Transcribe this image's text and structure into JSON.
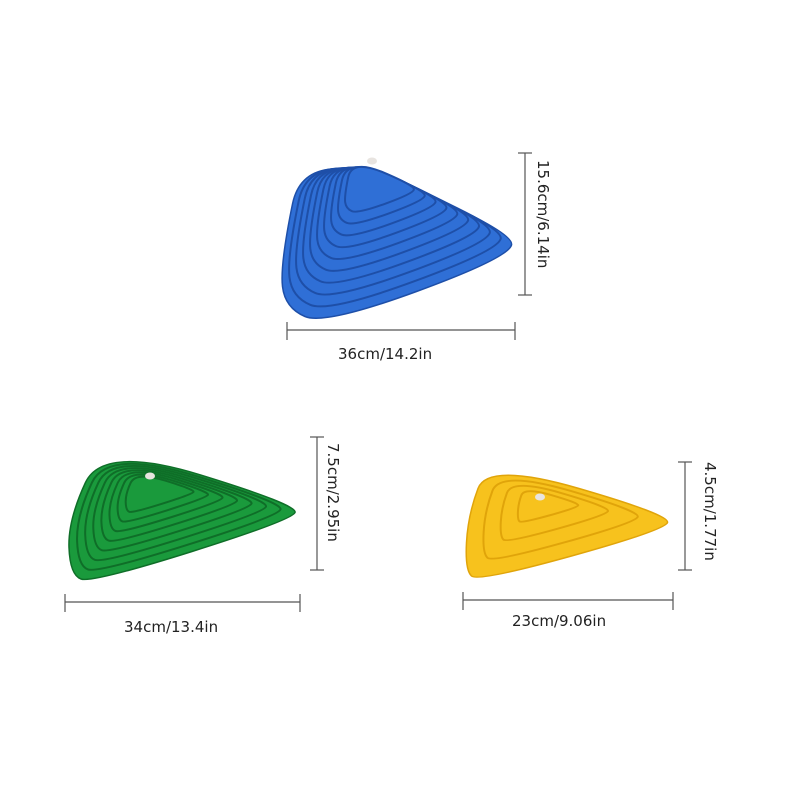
{
  "stones": [
    {
      "color": "blue",
      "fill": "#2f6fd6",
      "stroke": "#1e4fa8",
      "rings": 9,
      "width_label": "36cm/14.2in",
      "height_label": "15.6cm/6.14in"
    },
    {
      "color": "green",
      "fill": "#1a9a3c",
      "stroke": "#0f6e28",
      "rings": 7,
      "width_label": "34cm/13.4in",
      "height_label": "7.5cm/2.95in"
    },
    {
      "color": "yellow",
      "fill": "#f7c21d",
      "stroke": "#e0a40a",
      "rings": 3,
      "width_label": "23cm/9.06in",
      "height_label": "4.5cm/1.77in"
    }
  ]
}
